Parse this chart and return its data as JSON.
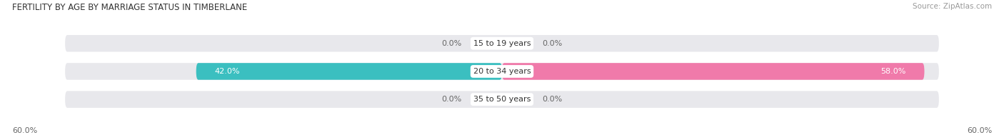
{
  "title": "FERTILITY BY AGE BY MARRIAGE STATUS IN TIMBERLANE",
  "source": "Source: ZipAtlas.com",
  "categories": [
    "15 to 19 years",
    "20 to 34 years",
    "35 to 50 years"
  ],
  "married_values": [
    0.0,
    42.0,
    0.0
  ],
  "unmarried_values": [
    0.0,
    58.0,
    0.0
  ],
  "max_value": 60.0,
  "married_color": "#3bbfc0",
  "unmarried_color": "#f07aaa",
  "bar_bg_color": "#e8e8ec",
  "title_fontsize": 8.5,
  "source_fontsize": 7.5,
  "label_fontsize": 8,
  "category_fontsize": 8,
  "axis_label_fontsize": 8,
  "background_color": "#ffffff",
  "axis_left_label": "60.0%",
  "axis_right_label": "60.0%"
}
